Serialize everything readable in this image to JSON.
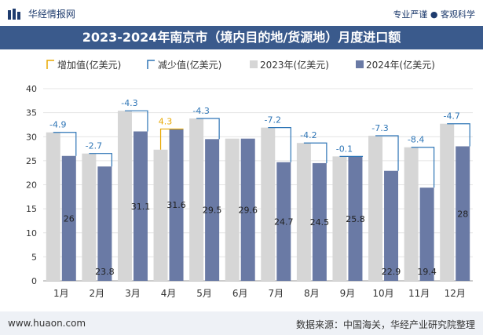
{
  "header": {
    "brand": "华经情报网",
    "tagline": "专业严谨 ● 客观科学",
    "title": "2023-2024年南京市（境内目的地/货源地）月度进口额"
  },
  "footer": {
    "url": "www.huaon.com",
    "source": "数据来源：中国海关，华经产业研究院整理"
  },
  "watermark": "华经产业研究院",
  "legend": [
    {
      "key": "increase",
      "label": "增加值(亿美元)"
    },
    {
      "key": "decrease",
      "label": "减少值(亿美元)"
    },
    {
      "key": "y2023",
      "label": "2023年(亿美元)"
    },
    {
      "key": "y2024",
      "label": "2024年(亿美元)"
    }
  ],
  "colors": {
    "y2023": "#d6d6d6",
    "y2024": "#6a7aa5",
    "increase": "#e8a800",
    "decrease": "#2e75b6",
    "title_bg": "#3a5a8c"
  },
  "chart_data": {
    "type": "bar",
    "categories": [
      "1月",
      "2月",
      "3月",
      "4月",
      "5月",
      "6月",
      "7月",
      "8月",
      "9月",
      "10月",
      "11月",
      "12月"
    ],
    "series": [
      {
        "name": "2023年(亿美元)",
        "values": [
          30.9,
          26.5,
          35.4,
          27.3,
          33.8,
          29.6,
          31.9,
          28.7,
          25.9,
          30.2,
          27.8,
          32.7
        ]
      },
      {
        "name": "2024年(亿美元)",
        "values": [
          26,
          23.8,
          31.1,
          31.6,
          29.5,
          29.6,
          24.7,
          24.5,
          25.8,
          22.9,
          19.4,
          28
        ]
      }
    ],
    "diff_labels": [
      "-4.9",
      "-2.7",
      "-4.3",
      "4.3",
      "-4.3",
      "",
      "-7.2",
      "-4.2",
      "-0.1",
      "-7.3",
      "-8.4",
      "-4.7"
    ],
    "value_labels": [
      "26",
      "23.8",
      "31.1",
      "31.6",
      "29.5",
      "29.6",
      "24.7",
      "24.5",
      "25.8",
      "22.9",
      "19.4",
      "28"
    ],
    "ylim": [
      0,
      40
    ],
    "yticks": [
      0,
      5,
      10,
      15,
      20,
      25,
      30,
      35,
      40
    ],
    "grid": true,
    "legend_position": "top"
  }
}
